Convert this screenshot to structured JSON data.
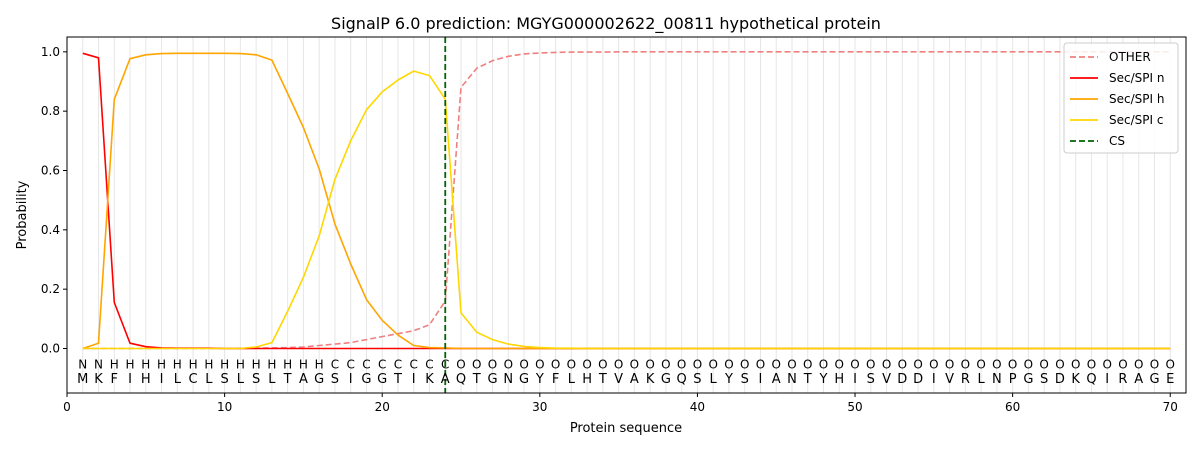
{
  "chart_data": {
    "type": "line",
    "title": "SignalP 6.0 prediction: MGYG000002622_00811 hypothetical protein",
    "xlabel": "Protein sequence",
    "ylabel": "Probability",
    "xlim": [
      0,
      71
    ],
    "ylim": [
      -0.15,
      1.05
    ],
    "x_ticks": [
      0,
      10,
      20,
      30,
      40,
      50,
      60,
      70
    ],
    "y_ticks": [
      0.0,
      0.2,
      0.4,
      0.6,
      0.8,
      1.0
    ],
    "legend_position": "top-right",
    "sequence": [
      "M",
      "K",
      "F",
      "I",
      "H",
      "I",
      "L",
      "C",
      "L",
      "S",
      "L",
      "S",
      "L",
      "T",
      "A",
      "G",
      "S",
      "I",
      "G",
      "G",
      "T",
      "I",
      "K",
      "A",
      "Q",
      "T",
      "G",
      "N",
      "G",
      "Y",
      "F",
      "L",
      "H",
      "T",
      "V",
      "A",
      "K",
      "G",
      "Q",
      "S",
      "L",
      "Y",
      "S",
      "I",
      "A",
      "N",
      "T",
      "Y",
      "H",
      "I",
      "S",
      "V",
      "D",
      "D",
      "I",
      "V",
      "R",
      "L",
      "N",
      "P",
      "G",
      "S",
      "D",
      "K",
      "Q",
      "I",
      "R",
      "A",
      "G",
      "E"
    ],
    "labels": [
      "N",
      "N",
      "H",
      "H",
      "H",
      "H",
      "H",
      "H",
      "H",
      "H",
      "H",
      "H",
      "H",
      "H",
      "H",
      "H",
      "C",
      "C",
      "C",
      "C",
      "C",
      "C",
      "C",
      "C",
      "O",
      "O",
      "O",
      "O",
      "O",
      "O",
      "O",
      "O",
      "O",
      "O",
      "O",
      "O",
      "O",
      "O",
      "O",
      "O",
      "O",
      "O",
      "O",
      "O",
      "O",
      "O",
      "O",
      "O",
      "O",
      "O",
      "O",
      "O",
      "O",
      "O",
      "O",
      "O",
      "O",
      "O",
      "O",
      "O",
      "O",
      "O",
      "O",
      "O",
      "O",
      "O",
      "O",
      "O",
      "O",
      "O"
    ],
    "label_colors": {
      "N": "#ff0000",
      "H": "#ffa500",
      "C": "#ffd700",
      "O": "#808080"
    },
    "cs_position": 24,
    "series": [
      {
        "name": "OTHER",
        "color": "#f08080",
        "dash": true,
        "values": [
          0.0,
          0.0,
          0.0,
          0.0,
          0.0,
          0.0,
          0.0,
          0.0,
          0.0,
          0.0,
          0.0,
          0.001,
          0.002,
          0.003,
          0.005,
          0.01,
          0.015,
          0.02,
          0.03,
          0.04,
          0.05,
          0.06,
          0.08,
          0.16,
          0.88,
          0.945,
          0.97,
          0.985,
          0.993,
          0.996,
          0.998,
          0.999,
          0.999,
          0.999,
          1,
          1,
          1,
          1,
          1,
          1,
          1,
          1,
          1,
          1,
          1,
          1,
          1,
          1,
          1,
          1,
          1,
          1,
          1,
          1,
          1,
          1,
          1,
          1,
          1,
          1,
          1,
          1,
          1,
          1,
          1,
          1,
          1,
          1,
          1,
          1
        ]
      },
      {
        "name": "Sec/SPI n",
        "color": "#ff0000",
        "dash": false,
        "values": [
          0.995,
          0.98,
          0.155,
          0.018,
          0.006,
          0.002,
          0.001,
          0.001,
          0.001,
          0.0,
          0.0,
          0.0,
          0.0,
          0.0,
          0.0,
          0.0,
          0.0,
          0.0,
          0.0,
          0.0,
          0.0,
          0.0,
          0.0,
          0.0,
          0.0,
          0.0,
          0.0,
          0.0,
          0.0,
          0.0,
          0.0,
          0.0,
          0.0,
          0.0,
          0.0,
          0.0,
          0.0,
          0.0,
          0.0,
          0.0,
          0.0,
          0.0,
          0.0,
          0.0,
          0.0,
          0.0,
          0.0,
          0.0,
          0.0,
          0.0,
          0.0,
          0.0,
          0.0,
          0.0,
          0.0,
          0.0,
          0.0,
          0.0,
          0.0,
          0.0,
          0.0,
          0.0,
          0.0,
          0.0,
          0.0,
          0.0,
          0.0,
          0.0,
          0.0,
          0.0
        ]
      },
      {
        "name": "Sec/SPI h",
        "color": "#ffa500",
        "dash": false,
        "values": [
          0.0,
          0.018,
          0.84,
          0.977,
          0.99,
          0.994,
          0.995,
          0.995,
          0.995,
          0.995,
          0.994,
          0.99,
          0.972,
          0.86,
          0.745,
          0.605,
          0.42,
          0.285,
          0.165,
          0.095,
          0.045,
          0.01,
          0.003,
          0.002,
          0.0,
          0.0,
          0.0,
          0.0,
          0.0,
          0.0,
          0.0,
          0.0,
          0.0,
          0.0,
          0.0,
          0.0,
          0.0,
          0.0,
          0.0,
          0.0,
          0.0,
          0.0,
          0.0,
          0.0,
          0.0,
          0.0,
          0.0,
          0.0,
          0.0,
          0.0,
          0.0,
          0.0,
          0.0,
          0.0,
          0.0,
          0.0,
          0.0,
          0.0,
          0.0,
          0.0,
          0.0,
          0.0,
          0.0,
          0.0,
          0.0,
          0.0,
          0.0,
          0.0,
          0.0,
          0.0
        ]
      },
      {
        "name": "Sec/SPI c",
        "color": "#ffd700",
        "dash": false,
        "values": [
          0.0,
          0.0,
          0.0,
          0.0,
          0.0,
          0.0,
          0.0,
          0.0,
          0.0,
          0.0,
          0.0,
          0.005,
          0.02,
          0.125,
          0.24,
          0.38,
          0.57,
          0.7,
          0.805,
          0.865,
          0.905,
          0.935,
          0.92,
          0.84,
          0.12,
          0.055,
          0.03,
          0.015,
          0.007,
          0.003,
          0.001,
          0.001,
          0.0,
          0.0,
          0.0,
          0.0,
          0.0,
          0.0,
          0.0,
          0.0,
          0.0,
          0.0,
          0.0,
          0.0,
          0.0,
          0.0,
          0.0,
          0.0,
          0.0,
          0.0,
          0.0,
          0.0,
          0.0,
          0.0,
          0.0,
          0.0,
          0.0,
          0.0,
          0.0,
          0.0,
          0.0,
          0.0,
          0.0,
          0.0,
          0.0,
          0.0,
          0.0,
          0.0,
          0.0,
          0.0
        ]
      }
    ],
    "legend": [
      {
        "name": "OTHER",
        "color": "#f08080",
        "style": "dashed"
      },
      {
        "name": "Sec/SPI n",
        "color": "#ff0000",
        "style": "solid"
      },
      {
        "name": "Sec/SPI h",
        "color": "#ffa500",
        "style": "solid"
      },
      {
        "name": "Sec/SPI c",
        "color": "#ffd700",
        "style": "solid"
      },
      {
        "name": "CS",
        "color": "#006400",
        "style": "dashed"
      }
    ]
  }
}
